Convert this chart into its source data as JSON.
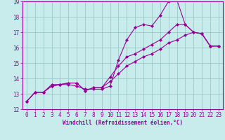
{
  "xlabel": "Windchill (Refroidissement éolien,°C)",
  "xlim": [
    -0.5,
    23.5
  ],
  "ylim": [
    12,
    19
  ],
  "xticks": [
    0,
    1,
    2,
    3,
    4,
    5,
    6,
    7,
    8,
    9,
    10,
    11,
    12,
    13,
    14,
    15,
    16,
    17,
    18,
    19,
    20,
    21,
    22,
    23
  ],
  "yticks": [
    12,
    13,
    14,
    15,
    16,
    17,
    18,
    19
  ],
  "bg_color": "#c8ecec",
  "grid_color": "#9ec8c8",
  "line_color": "#990099",
  "line1_x": [
    0,
    1,
    2,
    3,
    4,
    5,
    6,
    7,
    8,
    9,
    10,
    11,
    12,
    13,
    14,
    15,
    16,
    17,
    18,
    19,
    20,
    21,
    22,
    23
  ],
  "line1_y": [
    12.5,
    13.1,
    13.1,
    13.6,
    13.6,
    13.6,
    13.5,
    13.3,
    13.3,
    13.3,
    13.5,
    15.2,
    16.5,
    17.3,
    17.5,
    17.4,
    18.1,
    19.0,
    19.1,
    17.5,
    17.0,
    16.9,
    16.1,
    16.1
  ],
  "line2_x": [
    0,
    1,
    2,
    3,
    4,
    5,
    6,
    7,
    8,
    9,
    10,
    11,
    12,
    13,
    14,
    15,
    16,
    17,
    18,
    19,
    20,
    21,
    22,
    23
  ],
  "line2_y": [
    12.5,
    13.1,
    13.1,
    13.5,
    13.6,
    13.7,
    13.7,
    13.2,
    13.4,
    13.4,
    14.1,
    14.8,
    15.4,
    15.6,
    15.9,
    16.2,
    16.5,
    17.0,
    17.5,
    17.5,
    17.0,
    16.9,
    16.1,
    16.1
  ],
  "line3_x": [
    0,
    1,
    2,
    3,
    4,
    5,
    6,
    7,
    8,
    9,
    10,
    11,
    12,
    13,
    14,
    15,
    16,
    17,
    18,
    19,
    20,
    21,
    22,
    23
  ],
  "line3_y": [
    12.5,
    13.1,
    13.1,
    13.5,
    13.6,
    13.7,
    13.7,
    13.2,
    13.4,
    13.4,
    13.8,
    14.3,
    14.8,
    15.1,
    15.4,
    15.6,
    15.9,
    16.3,
    16.5,
    16.8,
    17.0,
    16.9,
    16.1,
    16.1
  ],
  "tick_labelsize": 5.5,
  "xlabel_fontsize": 5.5,
  "marker_size": 2.0,
  "line_width": 0.8
}
